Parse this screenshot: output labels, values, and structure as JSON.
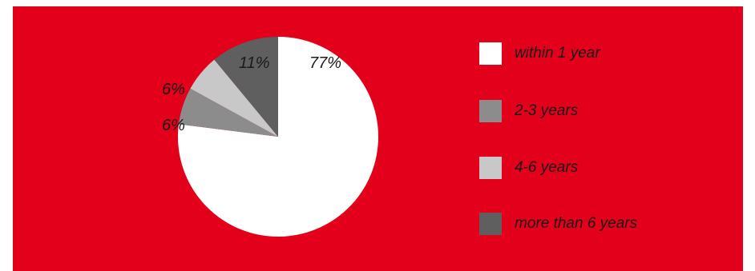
{
  "colors": {
    "background": "#e2001a",
    "within_1_year": "#ffffff",
    "2_3_years": "#8c8c8c",
    "4_6_years": "#c8c8c8",
    "more_than_6_years": "#5f5f5f"
  },
  "chart_data": {
    "type": "pie",
    "title": "",
    "slices": [
      {
        "label": "within 1 year",
        "value": 77,
        "value_label": "77%",
        "color": "#ffffff"
      },
      {
        "label": "2-3 years",
        "value": 6,
        "value_label": "6%",
        "color": "#8c8c8c"
      },
      {
        "label": "4-6 years",
        "value": 6,
        "value_label": "6%",
        "color": "#c8c8c8"
      },
      {
        "label": "more than 6 years",
        "value": 11,
        "value_label": "11%",
        "color": "#5f5f5f"
      }
    ],
    "legend_position": "right"
  }
}
